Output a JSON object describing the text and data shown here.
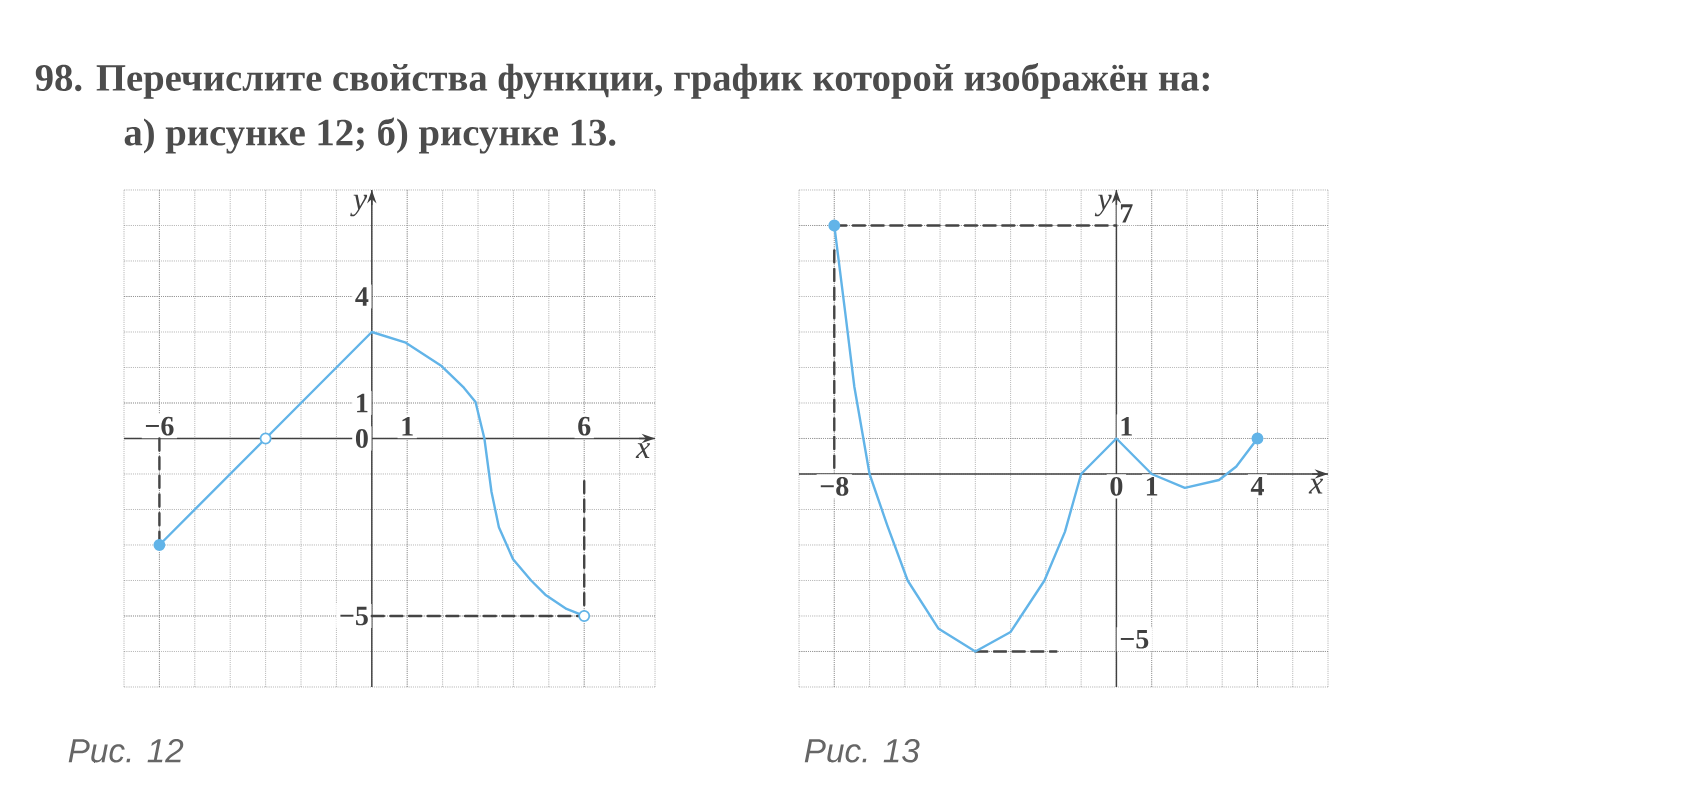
{
  "chart_data": [
    {
      "type": "line",
      "title": "98. Перечислите свойства функции, график которой изображён на:",
      "subtitle": "а) рисунке 12;  б) рисунке 13.",
      "xlabel": "x",
      "ylabel": "y",
      "xlim": [
        -7,
        8
      ],
      "ylim": [
        -7,
        7
      ],
      "xticks": [
        {
          "value": -6,
          "label": "−6"
        },
        1,
        6
      ],
      "yticks": [
        4,
        1,
        0,
        {
          "value": -5,
          "label": "−5"
        }
      ],
      "grid": true,
      "annotations": [
        "Рис. 12"
      ],
      "series": [
        {
          "color": "#444444",
          "line_style": "dashed",
          "marker": "none",
          "x": [
            -6,
            -6
          ],
          "values": [
            0,
            -3
          ]
        },
        {
          "color": "#444444",
          "line_style": "dashed",
          "marker": "none",
          "x": [
            6,
            6
          ],
          "values": [
            -1.2,
            -5
          ]
        },
        {
          "color": "#444444",
          "line_style": "dashed",
          "marker": "none",
          "x": [
            0,
            6
          ],
          "values": [
            -5,
            -5
          ]
        },
        {
          "color": "#62b4e8",
          "line_style": "solid",
          "marker": "none",
          "x": [
            -6,
            -3,
            0,
            0.96,
            1.97,
            2.6,
            2.93,
            3.18,
            3.38,
            3.59,
            3.99,
            4.5,
            4.9,
            5.5,
            6
          ],
          "values": [
            -3,
            0,
            3,
            2.7,
            2.04,
            1.43,
            1.03,
            0,
            -1.5,
            -2.5,
            -3.4,
            -4,
            -4.4,
            -4.8,
            -5
          ]
        },
        {
          "type": "scatter",
          "color": "#62b4e8",
          "marker": "circle",
          "x": [
            -6
          ],
          "values": [
            -3
          ]
        },
        {
          "type": "scatter",
          "color": "#ffffff",
          "marker": "circle",
          "x": [
            -3,
            6
          ],
          "values": [
            0,
            -5
          ]
        }
      ]
    },
    {
      "type": "line",
      "xlabel": "x",
      "ylabel": "y",
      "xlim": [
        -9,
        6
      ],
      "ylim": [
        -6,
        8
      ],
      "xticks": [
        {
          "value": -8,
          "label": "−8"
        },
        0,
        1,
        4
      ],
      "yticks": [
        7,
        1,
        {
          "value": -5,
          "label": "−5"
        }
      ],
      "grid": true,
      "annotations": [
        "Рис. 13"
      ],
      "series": [
        {
          "color": "#444444",
          "line_style": "dashed",
          "marker": "none",
          "x": [
            -8,
            0
          ],
          "values": [
            7,
            7
          ]
        },
        {
          "color": "#444444",
          "line_style": "dashed",
          "marker": "none",
          "x": [
            -8,
            -8
          ],
          "values": [
            6.3,
            0
          ]
        },
        {
          "color": "#444444",
          "line_style": "dashed",
          "marker": "none",
          "x": [
            -4,
            -1.7
          ],
          "values": [
            -5,
            -5
          ]
        },
        {
          "color": "#62b4e8",
          "line_style": "solid",
          "marker": "none",
          "x": [
            -8,
            -7.67,
            -7.43,
            -7,
            -6.5,
            -5.92,
            -5.05,
            -4,
            -3,
            -2.04,
            -1.46,
            -1,
            0,
            1,
            1.94,
            2.91,
            3.4,
            4
          ],
          "values": [
            7,
            4.39,
            2.45,
            0,
            -1.44,
            -3,
            -4.35,
            -5,
            -4.45,
            -3,
            -1.63,
            0,
            1,
            0,
            -0.39,
            -0.17,
            0.21,
            1
          ]
        },
        {
          "type": "scatter",
          "color": "#62b4e8",
          "marker": "circle",
          "x": [
            -8,
            4
          ],
          "values": [
            7,
            1
          ]
        }
      ]
    }
  ]
}
